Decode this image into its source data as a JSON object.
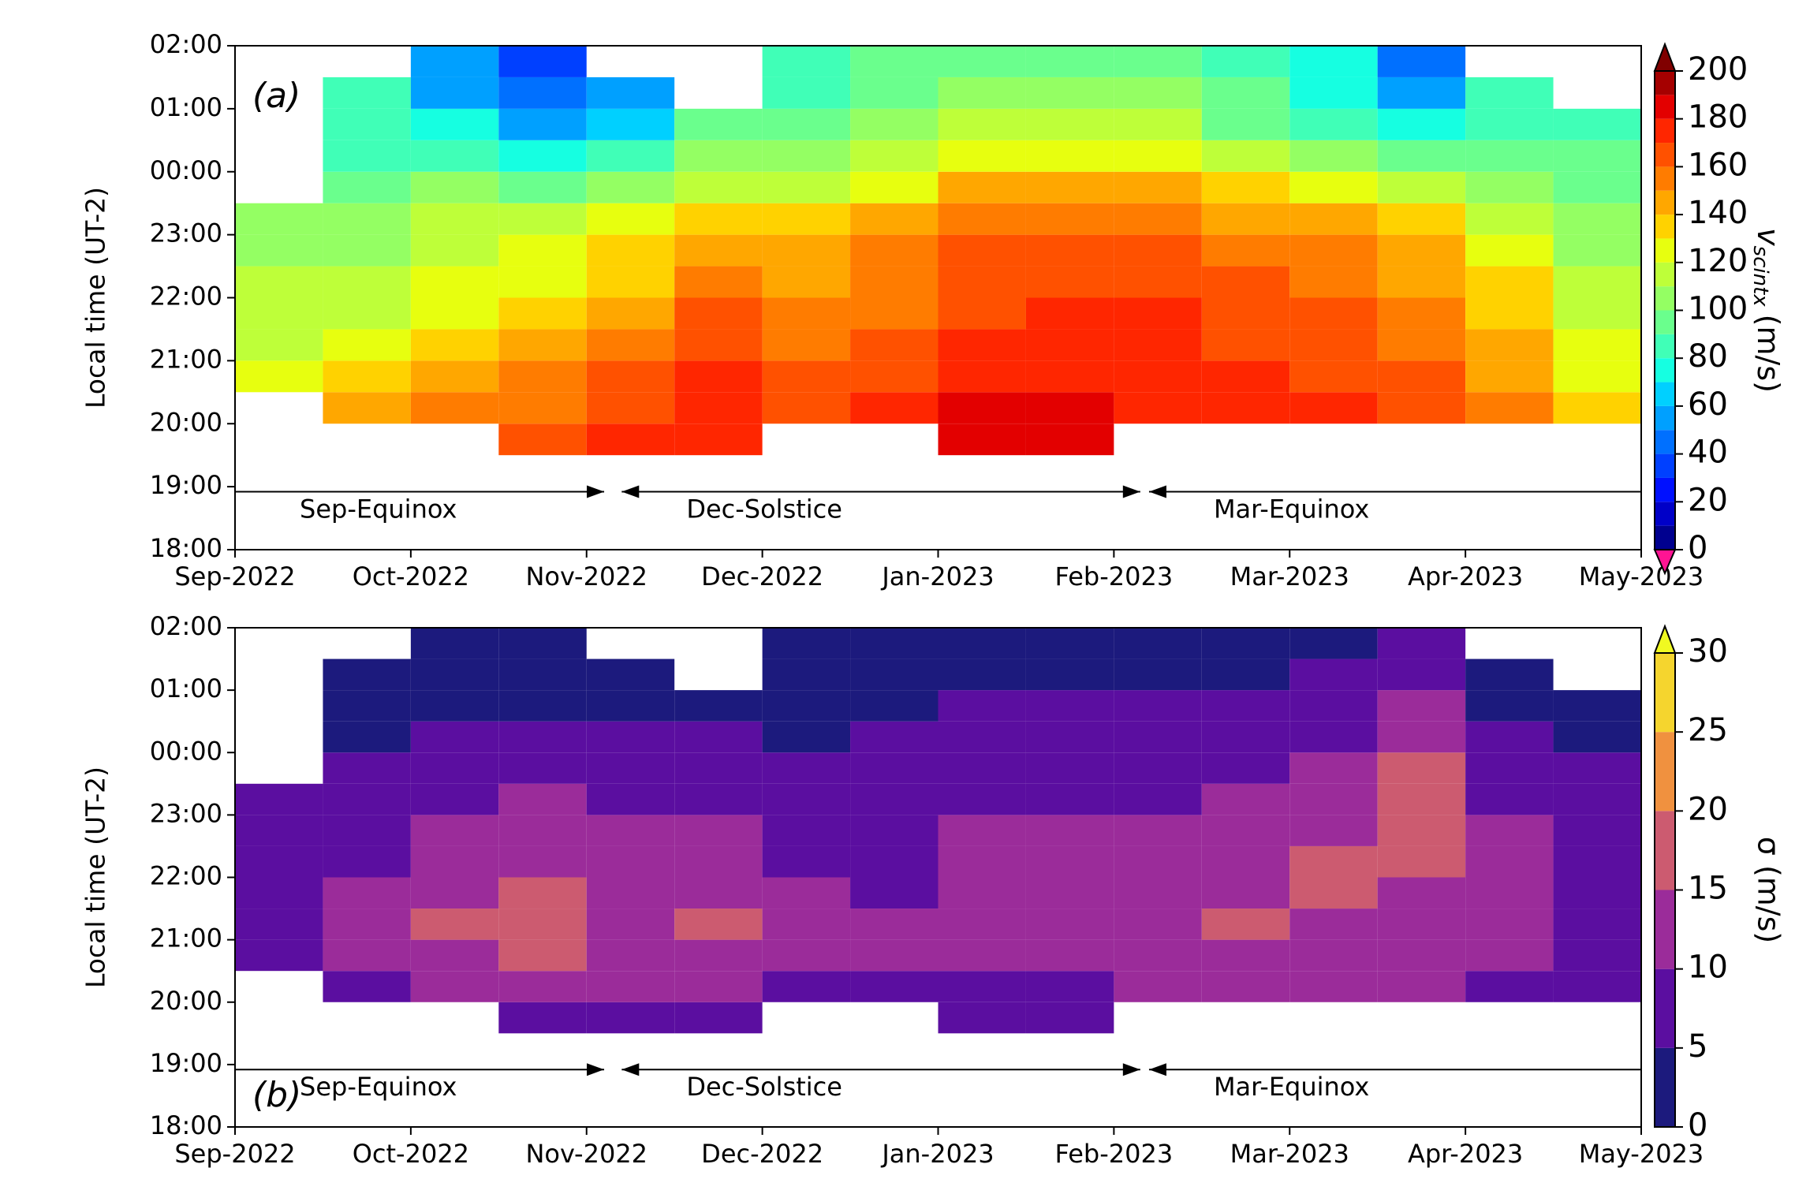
{
  "chart_data": [
    {
      "type": "heatmap",
      "panel_label": "(a)",
      "ylabel": "Local time (UT-2)",
      "x": [
        0,
        0.5,
        1,
        1.5,
        2,
        2.5,
        3,
        3.5,
        4,
        4.5,
        5,
        5.5,
        6,
        6.5,
        7,
        7.5,
        8
      ],
      "y": [
        18,
        18.5,
        19,
        19.5,
        20,
        20.5,
        21,
        21.5,
        22,
        22.5,
        23,
        23.5,
        24,
        24.5,
        25,
        25.5,
        26
      ],
      "z": [
        [
          null,
          null,
          null,
          null,
          null,
          null,
          null,
          null,
          null,
          null,
          null,
          null,
          null,
          null,
          null,
          null
        ],
        [
          null,
          null,
          null,
          null,
          null,
          null,
          null,
          null,
          null,
          null,
          null,
          null,
          null,
          null,
          null,
          null
        ],
        [
          null,
          null,
          null,
          null,
          null,
          null,
          null,
          null,
          null,
          null,
          null,
          null,
          null,
          null,
          null,
          null
        ],
        [
          null,
          null,
          null,
          160,
          170,
          170,
          null,
          null,
          185,
          185,
          null,
          null,
          null,
          null,
          null,
          null
        ],
        [
          null,
          140,
          150,
          155,
          165,
          175,
          165,
          170,
          180,
          180,
          175,
          175,
          170,
          165,
          150,
          130
        ],
        [
          120,
          130,
          140,
          150,
          160,
          170,
          160,
          165,
          175,
          178,
          175,
          170,
          168,
          160,
          145,
          125
        ],
        [
          115,
          120,
          130,
          140,
          150,
          165,
          155,
          160,
          170,
          172,
          172,
          168,
          165,
          155,
          140,
          120
        ],
        [
          110,
          115,
          125,
          135,
          145,
          160,
          150,
          158,
          168,
          170,
          170,
          165,
          160,
          150,
          135,
          115
        ],
        [
          110,
          110,
          120,
          125,
          135,
          150,
          145,
          155,
          165,
          168,
          168,
          160,
          155,
          145,
          130,
          110
        ],
        [
          105,
          105,
          115,
          120,
          130,
          140,
          140,
          150,
          160,
          165,
          165,
          155,
          150,
          140,
          120,
          105
        ],
        [
          100,
          100,
          110,
          110,
          120,
          130,
          130,
          140,
          150,
          155,
          155,
          145,
          140,
          130,
          115,
          100
        ],
        [
          null,
          95,
          100,
          95,
          105,
          115,
          115,
          125,
          140,
          140,
          140,
          130,
          125,
          115,
          105,
          95
        ],
        [
          null,
          85,
          85,
          75,
          85,
          100,
          100,
          110,
          120,
          125,
          120,
          110,
          100,
          95,
          95,
          90
        ],
        [
          null,
          80,
          70,
          55,
          65,
          90,
          90,
          100,
          110,
          110,
          110,
          95,
          85,
          75,
          85,
          85
        ],
        [
          null,
          80,
          55,
          40,
          50,
          null,
          80,
          95,
          100,
          100,
          100,
          90,
          75,
          55,
          80,
          null
        ],
        [
          null,
          null,
          50,
          35,
          null,
          null,
          80,
          95,
          95,
          95,
          95,
          85,
          70,
          45,
          null,
          null
        ]
      ],
      "xlim": [
        0,
        8
      ],
      "xticks": [
        {
          "value": 0,
          "label": "Sep-2022"
        },
        {
          "value": 1,
          "label": "Oct-2022"
        },
        {
          "value": 2,
          "label": "Nov-2022"
        },
        {
          "value": 3,
          "label": "Dec-2022"
        },
        {
          "value": 4,
          "label": "Jan-2023"
        },
        {
          "value": 5,
          "label": "Feb-2023"
        },
        {
          "value": 6,
          "label": "Mar-2023"
        },
        {
          "value": 7,
          "label": "Apr-2023"
        },
        {
          "value": 8,
          "label": "May-2023"
        }
      ],
      "ylim": [
        18,
        26
      ],
      "yticks": [
        {
          "value": 18,
          "label": "18:00"
        },
        {
          "value": 19,
          "label": "19:00"
        },
        {
          "value": 20,
          "label": "20:00"
        },
        {
          "value": 21,
          "label": "21:00"
        },
        {
          "value": 22,
          "label": "22:00"
        },
        {
          "value": 23,
          "label": "23:00"
        },
        {
          "value": 24,
          "label": "00:00"
        },
        {
          "value": 25,
          "label": "01:00"
        },
        {
          "value": 26,
          "label": "02:00"
        }
      ],
      "seasons": [
        {
          "label": "Sep-Equinox",
          "start": 0,
          "end": 2.1
        },
        {
          "label": "Dec-Solstice",
          "start": 2.2,
          "end": 5.15
        },
        {
          "label": "Mar-Equinox",
          "start": 5.2,
          "end": 8
        }
      ],
      "colorbar": {
        "label": "v",
        "label_sub": "scintx",
        "label_unit": "(m/s)",
        "levels": [
          0,
          10,
          20,
          30,
          40,
          50,
          60,
          70,
          80,
          90,
          100,
          110,
          120,
          130,
          140,
          150,
          160,
          170,
          180,
          190,
          200
        ],
        "colors": [
          "#00008f",
          "#0000c8",
          "#0010ff",
          "#0040ff",
          "#0070ff",
          "#00a0ff",
          "#00d0ff",
          "#16ffe1",
          "#40ffb7",
          "#6aff8d",
          "#94ff63",
          "#beff39",
          "#e7ff0f",
          "#ffd200",
          "#ffa700",
          "#ff7c00",
          "#ff5100",
          "#ff2600",
          "#e30000",
          "#a50000"
        ],
        "under_color": "#ff1493",
        "over_color": "#800000",
        "ticks": [
          0,
          20,
          40,
          60,
          80,
          100,
          120,
          140,
          160,
          180,
          200
        ]
      }
    },
    {
      "type": "heatmap",
      "panel_label": "(b)",
      "ylabel": "Local time (UT-2)",
      "x": [
        0,
        0.5,
        1,
        1.5,
        2,
        2.5,
        3,
        3.5,
        4,
        4.5,
        5,
        5.5,
        6,
        6.5,
        7,
        7.5,
        8
      ],
      "y": [
        18,
        18.5,
        19,
        19.5,
        20,
        20.5,
        21,
        21.5,
        22,
        22.5,
        23,
        23.5,
        24,
        24.5,
        25,
        25.5,
        26
      ],
      "z": [
        [
          null,
          null,
          null,
          null,
          null,
          null,
          null,
          null,
          null,
          null,
          null,
          null,
          null,
          null,
          null,
          null
        ],
        [
          null,
          null,
          null,
          null,
          null,
          null,
          null,
          null,
          null,
          null,
          null,
          null,
          null,
          null,
          null,
          null
        ],
        [
          null,
          null,
          null,
          null,
          null,
          null,
          null,
          null,
          null,
          null,
          null,
          null,
          null,
          null,
          null,
          null
        ],
        [
          null,
          null,
          null,
          8,
          5,
          8,
          null,
          null,
          5,
          5,
          null,
          null,
          null,
          null,
          null,
          null
        ],
        [
          null,
          8,
          12,
          12,
          10,
          12,
          8,
          8,
          8,
          8,
          10,
          10,
          10,
          10,
          8,
          8
        ],
        [
          8,
          10,
          14,
          15,
          13,
          14,
          10,
          10,
          10,
          12,
          12,
          13,
          12,
          12,
          10,
          8
        ],
        [
          8,
          10,
          15,
          16,
          14,
          15,
          10,
          10,
          12,
          13,
          13,
          15,
          14,
          13,
          10,
          8
        ],
        [
          8,
          10,
          14,
          15,
          13,
          13,
          10,
          9,
          12,
          12,
          14,
          14,
          15,
          14,
          10,
          8
        ],
        [
          6,
          8,
          12,
          14,
          12,
          11,
          9,
          8,
          10,
          12,
          12,
          14,
          15,
          15,
          10,
          7
        ],
        [
          5,
          7,
          10,
          12,
          10,
          10,
          8,
          8,
          10,
          10,
          10,
          12,
          13,
          16,
          10,
          6
        ],
        [
          5,
          6,
          8,
          10,
          8,
          8,
          7,
          7,
          8,
          8,
          8,
          10,
          12,
          17,
          9,
          6
        ],
        [
          null,
          5,
          6,
          7,
          6,
          6,
          5,
          6,
          7,
          7,
          7,
          8,
          10,
          16,
          8,
          5
        ],
        [
          null,
          4,
          5,
          5,
          5,
          5,
          4,
          5,
          6,
          6,
          6,
          7,
          8,
          14,
          6,
          4
        ],
        [
          null,
          3,
          4,
          3,
          4,
          4,
          3,
          4,
          5,
          5,
          5,
          5,
          6,
          10,
          4,
          3
        ],
        [
          null,
          3,
          3,
          3,
          3,
          null,
          3,
          3,
          4,
          4,
          4,
          4,
          5,
          8,
          3,
          null
        ],
        [
          null,
          null,
          3,
          3,
          null,
          null,
          3,
          3,
          4,
          4,
          4,
          4,
          4,
          6,
          null,
          null
        ]
      ],
      "xlim": [
        0,
        8
      ],
      "xticks": [
        {
          "value": 0,
          "label": "Sep-2022"
        },
        {
          "value": 1,
          "label": "Oct-2022"
        },
        {
          "value": 2,
          "label": "Nov-2022"
        },
        {
          "value": 3,
          "label": "Dec-2022"
        },
        {
          "value": 4,
          "label": "Jan-2023"
        },
        {
          "value": 5,
          "label": "Feb-2023"
        },
        {
          "value": 6,
          "label": "Mar-2023"
        },
        {
          "value": 7,
          "label": "Apr-2023"
        },
        {
          "value": 8,
          "label": "May-2023"
        }
      ],
      "ylim": [
        18,
        26
      ],
      "yticks": [
        {
          "value": 18,
          "label": "18:00"
        },
        {
          "value": 19,
          "label": "19:00"
        },
        {
          "value": 20,
          "label": "20:00"
        },
        {
          "value": 21,
          "label": "21:00"
        },
        {
          "value": 22,
          "label": "22:00"
        },
        {
          "value": 23,
          "label": "23:00"
        },
        {
          "value": 24,
          "label": "00:00"
        },
        {
          "value": 25,
          "label": "01:00"
        },
        {
          "value": 26,
          "label": "02:00"
        }
      ],
      "seasons": [
        {
          "label": "Sep-Equinox",
          "start": 0,
          "end": 2.1
        },
        {
          "label": "Dec-Solstice",
          "start": 2.2,
          "end": 5.15
        },
        {
          "label": "Mar-Equinox",
          "start": 5.2,
          "end": 8
        }
      ],
      "colorbar": {
        "label": "σ (m/s)",
        "levels": [
          0,
          5,
          10,
          15,
          20,
          25,
          30
        ],
        "colors": [
          "#1c1a7d",
          "#5b0ea0",
          "#9b2c9a",
          "#cc5b70",
          "#f0913f",
          "#f5d52e"
        ],
        "over_color": "#f0f921",
        "ticks": [
          0,
          5,
          10,
          15,
          20,
          25,
          30
        ]
      }
    }
  ]
}
